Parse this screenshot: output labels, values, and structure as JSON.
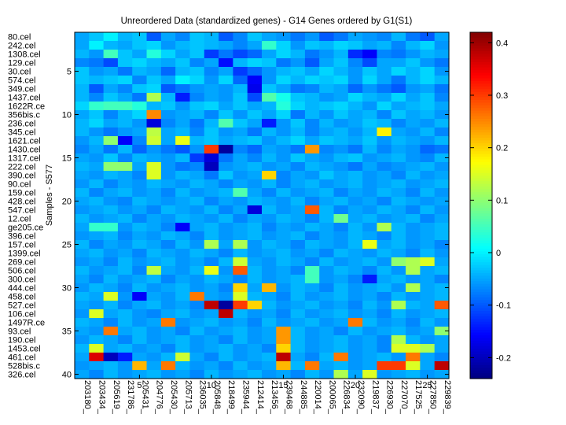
{
  "chart_data": {
    "type": "heatmap",
    "title": "Unreordered Data (standardized genes) - G14 Genes ordered by G1(S1)",
    "xlabel": "",
    "ylabel": "Samples - S577",
    "n_rows": 40,
    "n_cols": 26,
    "row_labels": [
      "80.cel",
      "242.cel",
      "1308.cel",
      "129.cel",
      "30.cel",
      "574.cel",
      "349.cel",
      "1437.cel",
      "1622R.ce",
      "356bis.c",
      "236.cel",
      "345.cel",
      "1621.cel",
      "1430.cel",
      "1317.cel",
      "222.cel",
      "390.cel",
      "90.cel",
      "159.cel",
      "428.cel",
      "547.cel",
      "12.cel",
      "ge205.ce",
      "396.cel",
      "157.cel",
      "1399.cel",
      "269.cel",
      "506.cel",
      "300.cel",
      "444.cel",
      "458.cel",
      "527.cel",
      "106.cel",
      "1497R.ce",
      "93.cel",
      "190.cel",
      "1453.cel",
      "461.cel",
      "528bis.c",
      "326.cel"
    ],
    "col_labels": [
      "203180_",
      "203434_",
      "205619_",
      "231786_",
      "205431_",
      "204776_",
      "205430_",
      "205713_",
      "236035_",
      "205848_",
      "218499_",
      "235944_",
      "212414_",
      "213456_",
      "239468_",
      "244885_",
      "220014_",
      "200065_",
      "226834_",
      "232090_",
      "219837_",
      "226930_",
      "227070_",
      "217525_",
      "227850_",
      "229839_"
    ],
    "y_tick_values": [
      5,
      10,
      15,
      20,
      25,
      30,
      35,
      40
    ],
    "x_tick_values": [
      5,
      10,
      15,
      20,
      25
    ],
    "colorbar": {
      "colormap": "jet",
      "clim": [
        -0.24,
        0.42
      ],
      "ticks": [
        -0.2,
        -0.1,
        0,
        0.1,
        0.2,
        0.3,
        0.4
      ],
      "tick_labels": [
        "-0.2",
        "-0.1",
        "0",
        "0.1",
        "0.2",
        "0.3",
        "0.4"
      ]
    },
    "values": [
      [
        -0.05,
        -0.03,
        0.0,
        -0.04,
        -0.03,
        -0.1,
        -0.05,
        -0.07,
        -0.03,
        -0.04,
        -0.1,
        -0.07,
        -0.03,
        -0.05,
        -0.06,
        -0.08,
        -0.06,
        -0.1,
        -0.08,
        -0.05,
        -0.06,
        -0.07,
        -0.04,
        -0.08,
        -0.1,
        -0.05
      ],
      [
        -0.05,
        0.0,
        -0.04,
        -0.05,
        -0.03,
        -0.02,
        -0.06,
        -0.04,
        -0.03,
        -0.04,
        -0.05,
        -0.07,
        -0.05,
        0.04,
        -0.02,
        -0.06,
        -0.03,
        -0.04,
        -0.02,
        -0.03,
        -0.05,
        -0.04,
        -0.07,
        -0.04,
        -0.02,
        -0.06
      ],
      [
        -0.04,
        -0.06,
        0.05,
        -0.03,
        -0.05,
        0.03,
        -0.02,
        -0.05,
        -0.03,
        -0.12,
        -0.08,
        -0.11,
        -0.09,
        -0.05,
        -0.02,
        -0.04,
        -0.08,
        -0.06,
        -0.04,
        -0.13,
        -0.16,
        -0.07,
        -0.08,
        -0.06,
        -0.04,
        -0.05
      ],
      [
        -0.07,
        -0.08,
        -0.11,
        -0.03,
        -0.02,
        -0.04,
        -0.05,
        -0.03,
        -0.07,
        -0.05,
        -0.15,
        -0.04,
        -0.02,
        -0.03,
        -0.08,
        -0.06,
        -0.1,
        -0.05,
        -0.03,
        -0.07,
        -0.11,
        -0.05,
        -0.05,
        -0.03,
        -0.06,
        -0.08
      ],
      [
        -0.03,
        -0.06,
        -0.05,
        -0.08,
        -0.04,
        -0.05,
        -0.09,
        -0.04,
        -0.03,
        -0.07,
        -0.05,
        -0.12,
        -0.09,
        -0.06,
        -0.04,
        -0.03,
        -0.05,
        -0.02,
        -0.04,
        -0.06,
        -0.03,
        -0.05,
        -0.02,
        -0.04,
        -0.02,
        -0.06
      ],
      [
        -0.03,
        -0.04,
        -0.03,
        -0.02,
        -0.07,
        -0.03,
        -0.05,
        0.0,
        -0.02,
        -0.06,
        -0.02,
        -0.09,
        -0.16,
        -0.06,
        -0.02,
        -0.04,
        -0.02,
        -0.03,
        -0.02,
        -0.06,
        -0.02,
        -0.05,
        -0.08,
        -0.04,
        -0.02,
        -0.04
      ],
      [
        -0.04,
        -0.1,
        -0.05,
        -0.07,
        -0.03,
        -0.02,
        -0.1,
        -0.08,
        -0.06,
        -0.05,
        -0.06,
        -0.04,
        -0.17,
        -0.03,
        -0.05,
        -0.08,
        -0.07,
        -0.04,
        -0.05,
        -0.09,
        -0.06,
        -0.08,
        -0.1,
        -0.06,
        -0.05,
        -0.08
      ],
      [
        -0.04,
        -0.07,
        -0.03,
        -0.05,
        -0.08,
        0.12,
        -0.04,
        -0.14,
        -0.07,
        -0.05,
        -0.06,
        -0.03,
        -0.11,
        0.06,
        0.02,
        -0.03,
        -0.04,
        -0.06,
        -0.05,
        -0.02,
        -0.04,
        -0.05,
        -0.02,
        -0.05,
        -0.03,
        -0.07
      ],
      [
        -0.02,
        0.04,
        0.05,
        0.05,
        0.03,
        -0.04,
        -0.03,
        -0.06,
        -0.03,
        -0.02,
        -0.05,
        -0.03,
        -0.05,
        -0.04,
        0.03,
        -0.02,
        -0.04,
        -0.03,
        -0.02,
        -0.04,
        -0.06,
        -0.02,
        -0.05,
        -0.04,
        -0.03,
        -0.05
      ],
      [
        -0.05,
        -0.03,
        -0.07,
        -0.04,
        -0.02,
        0.25,
        -0.06,
        -0.05,
        -0.04,
        -0.07,
        -0.03,
        -0.06,
        -0.03,
        -0.05,
        -0.02,
        -0.08,
        -0.04,
        -0.06,
        -0.03,
        -0.05,
        -0.04,
        -0.07,
        -0.03,
        -0.05,
        -0.04,
        -0.06
      ],
      [
        -0.04,
        -0.02,
        -0.05,
        -0.04,
        -0.06,
        -0.18,
        -0.07,
        -0.05,
        -0.08,
        -0.04,
        0.06,
        -0.03,
        -0.05,
        -0.14,
        -0.06,
        -0.03,
        -0.07,
        -0.04,
        -0.06,
        -0.05,
        -0.03,
        -0.04,
        -0.07,
        -0.05,
        -0.06,
        -0.04
      ],
      [
        -0.04,
        -0.06,
        -0.08,
        -0.06,
        -0.05,
        0.13,
        -0.05,
        -0.04,
        -0.07,
        -0.03,
        -0.06,
        -0.05,
        -0.08,
        -0.04,
        -0.06,
        -0.04,
        -0.07,
        -0.05,
        -0.04,
        -0.06,
        -0.04,
        0.18,
        -0.05,
        -0.06,
        -0.04,
        -0.07
      ],
      [
        -0.06,
        -0.04,
        0.1,
        -0.16,
        -0.07,
        0.14,
        -0.05,
        0.16,
        -0.04,
        -0.03,
        -0.05,
        -0.04,
        -0.03,
        -0.06,
        -0.04,
        -0.02,
        -0.05,
        -0.03,
        -0.04,
        -0.05,
        -0.03,
        -0.06,
        -0.04,
        -0.05,
        -0.06,
        -0.04
      ],
      [
        -0.07,
        -0.05,
        -0.08,
        -0.04,
        -0.09,
        -0.06,
        -0.08,
        -0.1,
        -0.06,
        0.3,
        -0.22,
        -0.07,
        -0.09,
        -0.05,
        -0.06,
        -0.08,
        0.24,
        -0.07,
        -0.06,
        -0.08,
        -0.04,
        -0.07,
        -0.05,
        -0.06,
        -0.09,
        -0.08
      ],
      [
        -0.05,
        -0.06,
        -0.03,
        -0.07,
        -0.04,
        -0.05,
        -0.06,
        -0.04,
        -0.12,
        -0.18,
        -0.08,
        -0.05,
        -0.07,
        -0.04,
        -0.06,
        -0.03,
        -0.05,
        -0.06,
        -0.04,
        -0.03,
        -0.06,
        -0.05,
        -0.04,
        -0.06,
        -0.07,
        -0.04
      ],
      [
        -0.04,
        -0.05,
        0.1,
        0.1,
        -0.05,
        0.15,
        -0.06,
        -0.08,
        -0.07,
        -0.2,
        -0.06,
        -0.05,
        -0.04,
        -0.06,
        -0.05,
        -0.07,
        -0.04,
        -0.05,
        -0.06,
        -0.08,
        -0.05,
        -0.07,
        -0.06,
        -0.05,
        -0.04,
        -0.06
      ],
      [
        -0.05,
        -0.06,
        -0.04,
        -0.05,
        -0.07,
        0.15,
        -0.06,
        -0.04,
        -0.05,
        -0.08,
        -0.03,
        -0.06,
        -0.05,
        0.2,
        -0.07,
        -0.05,
        -0.06,
        -0.03,
        -0.05,
        -0.04,
        -0.06,
        -0.05,
        -0.07,
        -0.04,
        -0.06,
        -0.05
      ],
      [
        -0.06,
        -0.04,
        -0.07,
        -0.05,
        -0.06,
        -0.04,
        -0.05,
        -0.06,
        -0.04,
        -0.05,
        -0.07,
        -0.05,
        -0.06,
        -0.04,
        -0.07,
        -0.05,
        -0.04,
        -0.06,
        -0.05,
        -0.04,
        -0.06,
        -0.05,
        -0.04,
        -0.06,
        -0.05,
        -0.04
      ],
      [
        -0.04,
        -0.07,
        -0.05,
        -0.04,
        -0.06,
        -0.05,
        -0.07,
        -0.04,
        -0.06,
        -0.05,
        -0.04,
        0.06,
        -0.05,
        -0.07,
        -0.04,
        -0.06,
        -0.05,
        -0.04,
        -0.07,
        -0.05,
        -0.06,
        -0.04,
        -0.05,
        -0.07,
        -0.04,
        -0.06
      ],
      [
        -0.05,
        -0.04,
        -0.06,
        -0.07,
        -0.04,
        -0.05,
        -0.06,
        -0.05,
        -0.04,
        -0.07,
        -0.05,
        -0.06,
        -0.04,
        -0.05,
        -0.06,
        -0.04,
        -0.07,
        -0.05,
        -0.04,
        -0.06,
        -0.05,
        -0.07,
        -0.04,
        -0.05,
        -0.06,
        -0.05
      ],
      [
        -0.06,
        -0.05,
        -0.04,
        -0.06,
        -0.05,
        -0.07,
        -0.04,
        -0.05,
        -0.06,
        -0.04,
        -0.07,
        -0.05,
        -0.18,
        -0.04,
        -0.06,
        -0.05,
        0.28,
        -0.04,
        -0.07,
        -0.05,
        -0.06,
        -0.04,
        -0.05,
        -0.07,
        -0.04,
        -0.06
      ],
      [
        -0.04,
        -0.06,
        -0.05,
        -0.04,
        -0.07,
        -0.05,
        -0.06,
        -0.04,
        -0.05,
        -0.06,
        -0.04,
        -0.07,
        -0.05,
        -0.06,
        -0.04,
        -0.05,
        -0.07,
        -0.04,
        0.08,
        -0.05,
        -0.04,
        -0.06,
        -0.05,
        -0.04,
        -0.07,
        -0.05
      ],
      [
        -0.05,
        0.04,
        0.04,
        -0.06,
        -0.04,
        -0.05,
        -0.07,
        -0.16,
        -0.05,
        -0.04,
        -0.06,
        -0.05,
        -0.04,
        -0.07,
        -0.05,
        -0.06,
        -0.04,
        -0.05,
        -0.07,
        -0.04,
        -0.06,
        0.12,
        -0.04,
        -0.06,
        -0.05,
        -0.04
      ],
      [
        -0.06,
        -0.05,
        -0.04,
        -0.07,
        -0.05,
        -0.06,
        -0.04,
        -0.05,
        -0.07,
        -0.04,
        -0.06,
        -0.05,
        -0.04,
        -0.06,
        -0.05,
        -0.04,
        -0.07,
        -0.05,
        -0.06,
        -0.04,
        -0.05,
        -0.07,
        -0.04,
        -0.06,
        -0.05,
        -0.04
      ],
      [
        -0.04,
        -0.07,
        -0.05,
        -0.06,
        -0.04,
        -0.05,
        -0.07,
        -0.04,
        -0.06,
        0.12,
        -0.05,
        0.12,
        -0.06,
        -0.04,
        -0.05,
        -0.07,
        -0.04,
        -0.05,
        -0.06,
        -0.04,
        0.16,
        -0.05,
        -0.04,
        -0.06,
        -0.05,
        -0.07
      ],
      [
        -0.05,
        -0.04,
        -0.06,
        -0.05,
        -0.07,
        -0.04,
        -0.05,
        -0.06,
        -0.04,
        -0.05,
        -0.07,
        -0.04,
        -0.06,
        -0.05,
        -0.04,
        -0.06,
        -0.05,
        -0.07,
        -0.04,
        -0.05,
        -0.06,
        -0.04,
        -0.05,
        -0.07,
        -0.04,
        -0.06
      ],
      [
        -0.06,
        -0.05,
        -0.07,
        -0.04,
        -0.06,
        -0.05,
        -0.04,
        -0.06,
        -0.05,
        -0.07,
        -0.04,
        0.14,
        -0.05,
        -0.06,
        -0.04,
        -0.05,
        -0.07,
        -0.04,
        -0.06,
        -0.05,
        -0.04,
        -0.06,
        0.1,
        0.12,
        0.15,
        -0.05
      ],
      [
        -0.04,
        -0.06,
        -0.05,
        -0.04,
        -0.07,
        0.13,
        -0.05,
        -0.06,
        -0.04,
        0.16,
        -0.06,
        0.28,
        -0.04,
        -0.06,
        -0.05,
        -0.07,
        0.05,
        -0.06,
        -0.04,
        -0.05,
        -0.07,
        -0.04,
        -0.06,
        0.12,
        -0.05,
        -0.04
      ],
      [
        -0.05,
        -0.07,
        -0.04,
        -0.06,
        -0.05,
        -0.04,
        -0.07,
        -0.05,
        -0.06,
        -0.04,
        -0.05,
        -0.07,
        -0.04,
        -0.06,
        -0.05,
        -0.04,
        0.05,
        -0.06,
        -0.05,
        -0.07,
        -0.14,
        -0.05,
        -0.04,
        -0.06,
        -0.05,
        -0.07
      ],
      [
        -0.06,
        -0.04,
        -0.05,
        -0.07,
        -0.04,
        -0.06,
        -0.05,
        -0.04,
        -0.06,
        -0.05,
        -0.07,
        0.2,
        -0.05,
        0.22,
        -0.06,
        -0.04,
        -0.05,
        -0.07,
        -0.04,
        -0.06,
        -0.05,
        -0.04,
        -0.06,
        0.12,
        -0.05,
        -0.04
      ],
      [
        -0.04,
        -0.05,
        0.15,
        -0.06,
        -0.16,
        -0.05,
        -0.06,
        -0.04,
        0.26,
        -0.05,
        -0.06,
        0.15,
        -0.04,
        -0.05,
        -0.07,
        -0.04,
        -0.06,
        -0.05,
        -0.04,
        -0.06,
        -0.05,
        -0.07,
        -0.04,
        -0.06,
        -0.05,
        -0.04
      ],
      [
        -0.05,
        -0.06,
        -0.04,
        -0.07,
        -0.05,
        -0.04,
        -0.06,
        -0.05,
        -0.07,
        0.38,
        -0.22,
        0.3,
        0.2,
        -0.04,
        -0.06,
        -0.05,
        -0.04,
        -0.06,
        -0.05,
        -0.07,
        -0.04,
        -0.06,
        0.12,
        -0.04,
        -0.05,
        0.28
      ],
      [
        -0.06,
        0.15,
        -0.05,
        -0.04,
        -0.06,
        -0.07,
        -0.05,
        -0.04,
        -0.06,
        -0.05,
        0.38,
        -0.04,
        -0.06,
        -0.05,
        -0.07,
        -0.04,
        -0.06,
        -0.05,
        -0.04,
        -0.06,
        -0.05,
        -0.07,
        -0.04,
        -0.06,
        -0.05,
        -0.04
      ],
      [
        -0.04,
        -0.05,
        -0.07,
        -0.04,
        -0.06,
        -0.05,
        0.26,
        -0.06,
        -0.05,
        -0.04,
        -0.06,
        -0.05,
        -0.07,
        -0.04,
        -0.06,
        -0.05,
        -0.04,
        -0.06,
        -0.05,
        0.26,
        -0.04,
        -0.06,
        -0.05,
        -0.07,
        -0.04,
        -0.06
      ],
      [
        -0.05,
        -0.06,
        0.26,
        -0.05,
        -0.04,
        -0.06,
        -0.05,
        -0.07,
        -0.04,
        -0.06,
        -0.05,
        -0.04,
        -0.06,
        -0.05,
        0.24,
        -0.04,
        -0.06,
        -0.05,
        -0.07,
        -0.04,
        -0.06,
        -0.05,
        -0.04,
        -0.06,
        -0.05,
        0.1
      ],
      [
        -0.06,
        -0.04,
        -0.05,
        -0.07,
        -0.04,
        -0.06,
        -0.05,
        -0.04,
        -0.06,
        -0.05,
        -0.07,
        -0.04,
        -0.06,
        -0.05,
        0.24,
        -0.04,
        -0.06,
        -0.05,
        -0.04,
        -0.06,
        -0.05,
        -0.07,
        0.12,
        -0.04,
        -0.06,
        -0.05
      ],
      [
        -0.04,
        0.15,
        -0.05,
        -0.04,
        -0.06,
        -0.05,
        -0.07,
        -0.04,
        -0.06,
        -0.05,
        -0.04,
        -0.06,
        -0.05,
        -0.07,
        0.2,
        -0.04,
        -0.06,
        -0.05,
        -0.04,
        -0.06,
        -0.05,
        -0.07,
        0.15,
        0.15,
        0.12,
        -0.05
      ],
      [
        -0.05,
        0.36,
        -0.2,
        -0.14,
        -0.05,
        -0.06,
        -0.04,
        0.14,
        -0.05,
        -0.07,
        -0.04,
        -0.06,
        -0.05,
        -0.04,
        0.38,
        -0.05,
        -0.07,
        -0.04,
        0.26,
        -0.06,
        -0.05,
        -0.04,
        -0.06,
        0.26,
        -0.05,
        -0.07
      ],
      [
        -0.06,
        -0.05,
        -0.04,
        -0.06,
        0.22,
        -0.05,
        0.26,
        -0.04,
        -0.06,
        -0.05,
        -0.07,
        -0.04,
        -0.06,
        -0.05,
        0.22,
        -0.04,
        0.26,
        -0.05,
        -0.04,
        -0.06,
        -0.05,
        0.3,
        0.3,
        0.15,
        -0.05,
        0.38
      ],
      [
        -0.05,
        -0.07,
        -0.04,
        -0.06,
        -0.05,
        -0.04,
        -0.06,
        -0.05,
        -0.07,
        -0.04,
        -0.06,
        -0.05,
        -0.04,
        -0.06,
        -0.05,
        -0.07,
        -0.04,
        -0.06,
        0.12,
        -0.05,
        0.15,
        -0.06,
        -0.05,
        -0.04,
        -0.06,
        -0.05
      ]
    ]
  }
}
